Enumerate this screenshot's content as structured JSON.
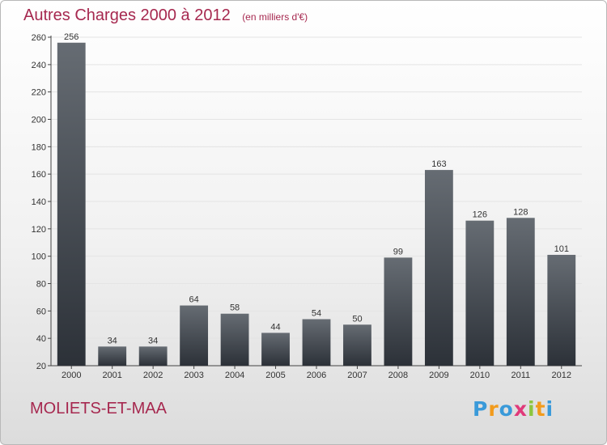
{
  "header": {
    "title": "Autres Charges 2000 à 2012",
    "subtitle": "(en milliers d'€)"
  },
  "footer": {
    "commune": "MOLIETS-ET-MAA",
    "logo": [
      "P",
      "r",
      "o",
      "x",
      "i",
      "t",
      "i"
    ],
    "logo_colors": [
      "#3a9ad9",
      "#f29b1c",
      "#3a9ad9",
      "#e03a7a",
      "#8cc63f",
      "#f29b1c",
      "#3a9ad9"
    ]
  },
  "colors": {
    "bar_top": "#666c73",
    "bar_bottom": "#2c3138",
    "grid": "#e4e4e4",
    "accent": "#a6284f"
  },
  "chart_data": {
    "type": "bar",
    "title": "Autres Charges 2000 à 2012",
    "subtitle": "(en milliers d'€)",
    "categories": [
      "2000",
      "2001",
      "2002",
      "2003",
      "2004",
      "2005",
      "2006",
      "2007",
      "2008",
      "2009",
      "2010",
      "2011",
      "2012"
    ],
    "values": [
      256,
      34,
      34,
      64,
      58,
      44,
      54,
      50,
      99,
      163,
      126,
      128,
      101
    ],
    "ylim": [
      20,
      260
    ],
    "yticks": [
      20,
      40,
      60,
      80,
      100,
      120,
      140,
      160,
      180,
      200,
      220,
      240,
      260
    ],
    "grid": true,
    "data_labels": true
  }
}
